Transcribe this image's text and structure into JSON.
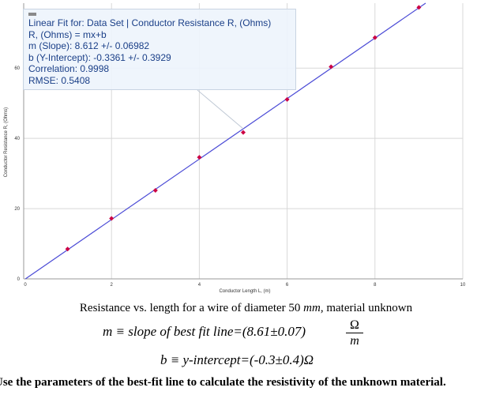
{
  "chart_data": {
    "type": "scatter",
    "xlabel": "Conductor Length L, (m)",
    "ylabel": "Conductor Resistance R, (Ohms)",
    "xlim": [
      0,
      10
    ],
    "ylim": [
      0,
      78.5
    ],
    "x_ticks": [
      "0",
      "2",
      "4",
      "6",
      "8",
      "10"
    ],
    "y_ticks": [
      "0",
      "20",
      "40",
      "60"
    ],
    "x_tick_values": [
      0,
      2,
      4,
      6,
      8,
      10
    ],
    "y_tick_values": [
      0,
      20,
      40,
      60
    ],
    "grid": true,
    "series": [
      {
        "x": [
          1,
          2,
          3,
          4,
          5,
          6,
          7,
          8,
          9
        ],
        "y": [
          8.5,
          17.2,
          25.2,
          34.6,
          41.7,
          51.1,
          60.4,
          68.7,
          77.3
        ],
        "color": "#cc0044"
      }
    ],
    "fit_line": {
      "slope": 8.612,
      "intercept": -0.3361,
      "color": "#4b4bd6"
    },
    "fit_box": {
      "lines": [
        "Linear Fit for: Data Set | Conductor Resistance R, (Ohms)",
        "R, (Ohms) = mx+b",
        "m (Slope): 8.612 +/- 0.06982",
        "b (Y-Intercept): -0.3361 +/- 0.3929",
        "Correlation: 0.9998",
        "RMSE: 0.5408"
      ]
    }
  },
  "caption": {
    "text1": "Resistance vs. length for a wire of diameter 50 ",
    "unit": "mm",
    "text2": ", material unknown"
  },
  "equations": {
    "slope": "m ≡ slope of best fit line=(8.61±0.07)",
    "slope_num": "Ω",
    "slope_den": "m",
    "intercept": "b ≡ y-intercept=(-0.3±0.4)Ω"
  },
  "question": "Use the parameters of the best-fit line to calculate the resistivity of the unknown material."
}
